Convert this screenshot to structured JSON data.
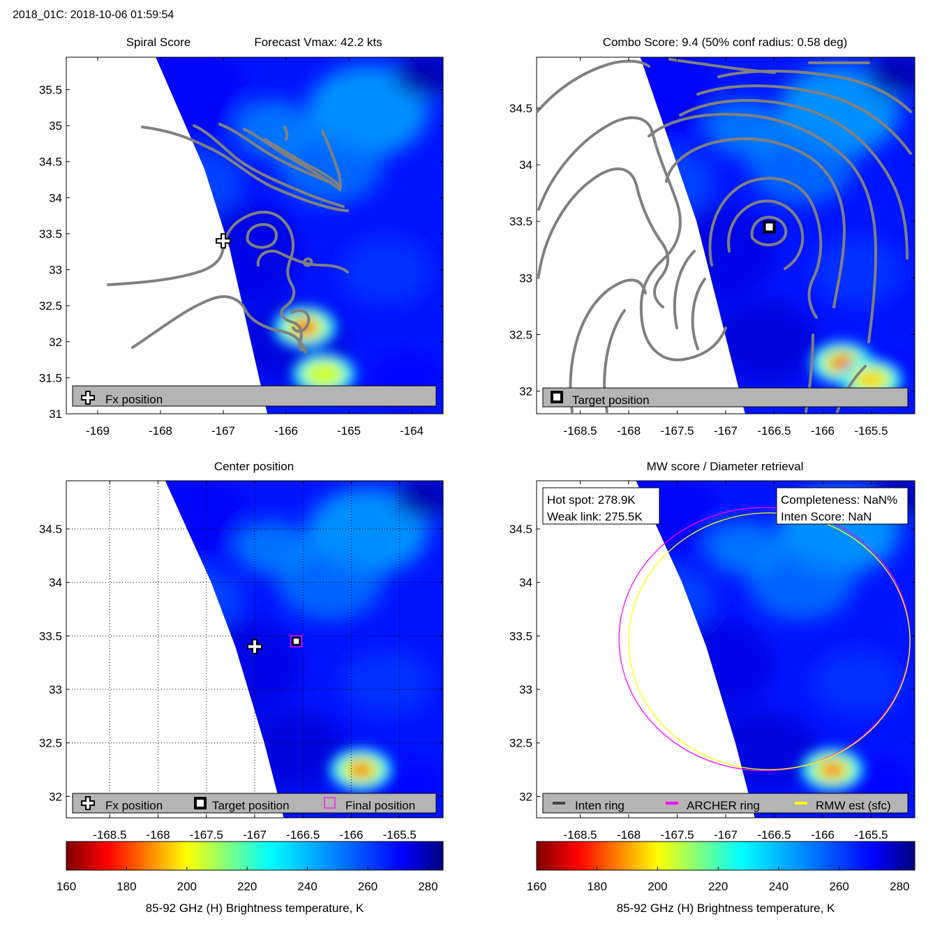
{
  "figure_title": "2018_01C: 2018-10-06 01:59:54",
  "colors": {
    "contour": "#808080",
    "legend_bg": "#b4b4b4",
    "archer_ring": "#ff00ff",
    "rmw_ring": "#ffff00",
    "inten_ring": "#404040",
    "final_marker": "#ff00ff"
  },
  "colorbar": {
    "label": "85-92 GHz (H) Brightness temperature, K",
    "ticks": [
      160,
      180,
      200,
      220,
      240,
      260,
      280
    ],
    "range": [
      160,
      285
    ],
    "colormap": "jet-reversed"
  },
  "chart_data": [
    {
      "id": "spiral",
      "type": "heatmap",
      "title": "Spiral Score",
      "title2": "Forecast Vmax: 42.2 kts",
      "xlim": [
        -169.5,
        -163.5
      ],
      "ylim": [
        31,
        35.95
      ],
      "xticks": [
        -169,
        -168,
        -167,
        -166,
        -165,
        -164
      ],
      "yticks": [
        31,
        31.5,
        32,
        32.5,
        33,
        33.5,
        34,
        34.5,
        35,
        35.5
      ],
      "swath_edge": [
        [
          -168.1,
          36
        ],
        [
          -167.3,
          34.4
        ],
        [
          -166.9,
          33.3
        ],
        [
          -166.3,
          31
        ]
      ],
      "hot_spots": [
        {
          "lon": -165.7,
          "lat": 32.2,
          "k": 180
        },
        {
          "lon": -165.4,
          "lat": 31.55,
          "k": 205
        }
      ],
      "fx_position": {
        "lon": -167.0,
        "lat": 33.4
      },
      "grid": false,
      "legend": [
        {
          "marker": "plus",
          "label": "Fx position"
        }
      ]
    },
    {
      "id": "combo",
      "type": "heatmap",
      "title": "Combo Score: 9.4  (50% conf radius: 0.58 deg)",
      "xlim": [
        -168.95,
        -165.05
      ],
      "ylim": [
        31.8,
        34.95
      ],
      "xticks": [
        -168.5,
        -168,
        -167.5,
        -167,
        -166.5,
        -166,
        -165.5
      ],
      "yticks": [
        32,
        32.5,
        33,
        33.5,
        34,
        34.5
      ],
      "swath_edge": [
        [
          -167.9,
          35
        ],
        [
          -167.3,
          33.5
        ],
        [
          -166.8,
          31.8
        ]
      ],
      "hot_spots": [
        {
          "lon": -165.8,
          "lat": 32.25,
          "k": 178
        },
        {
          "lon": -165.5,
          "lat": 32.1,
          "k": 195
        }
      ],
      "target_position": {
        "lon": -166.55,
        "lat": 33.45
      },
      "grid": false,
      "legend": [
        {
          "marker": "square",
          "label": "Target position"
        }
      ]
    },
    {
      "id": "center",
      "type": "heatmap",
      "title": "Center position",
      "xlim": [
        -168.95,
        -165.05
      ],
      "ylim": [
        31.8,
        34.95
      ],
      "xticks": [
        -168.5,
        -168,
        -167.5,
        -167,
        -166.5,
        -166,
        -165.5
      ],
      "yticks": [
        32,
        32.5,
        33,
        33.5,
        34,
        34.5
      ],
      "swath_edge": [
        [
          -167.95,
          35
        ],
        [
          -167.45,
          34
        ],
        [
          -167.2,
          33.4
        ],
        [
          -166.9,
          32.5
        ],
        [
          -166.7,
          31.8
        ]
      ],
      "hot_spots": [
        {
          "lon": -165.9,
          "lat": 32.25,
          "k": 185
        }
      ],
      "fx_position": {
        "lon": -167.0,
        "lat": 33.4
      },
      "target_position": {
        "lon": -166.57,
        "lat": 33.45
      },
      "final_position": {
        "lon": -166.57,
        "lat": 33.45
      },
      "grid": true,
      "legend": [
        {
          "marker": "plus",
          "label": "Fx position"
        },
        {
          "marker": "square",
          "label": "Target position"
        },
        {
          "marker": "magenta-square",
          "label": "Final position"
        }
      ]
    },
    {
      "id": "diameter",
      "type": "heatmap",
      "title": "MW score / Diameter retrieval",
      "xlim": [
        -168.95,
        -165.05
      ],
      "ylim": [
        31.8,
        34.95
      ],
      "xticks": [
        -168.5,
        -168,
        -167.5,
        -167,
        -166.5,
        -166,
        -165.5
      ],
      "yticks": [
        32,
        32.5,
        33,
        33.5,
        34,
        34.5
      ],
      "swath_edge": [
        [
          -167.95,
          35
        ],
        [
          -167.45,
          34
        ],
        [
          -167.2,
          33.4
        ],
        [
          -166.9,
          32.5
        ],
        [
          -166.7,
          31.8
        ]
      ],
      "hot_spots": [
        {
          "lon": -165.9,
          "lat": 32.25,
          "k": 185
        }
      ],
      "archer_ring": {
        "lon": -166.6,
        "lat": 33.47,
        "r_lon": 1.5,
        "r_lat": 1.23
      },
      "rmw_ring": {
        "lon": -166.55,
        "lat": 33.45,
        "r_lon": 1.45,
        "r_lat": 1.2
      },
      "grid": false,
      "info_left": [
        "Hot spot: 278.9K",
        "Weak link: 275.5K"
      ],
      "info_right": [
        "Completeness: NaN%",
        "Inten Score: NaN"
      ],
      "legend": [
        {
          "marker": "dark-line",
          "label": "Inten ring"
        },
        {
          "marker": "magenta-line",
          "label": "ARCHER ring"
        },
        {
          "marker": "yellow-line",
          "label": "RMW est (sfc)"
        }
      ]
    }
  ]
}
